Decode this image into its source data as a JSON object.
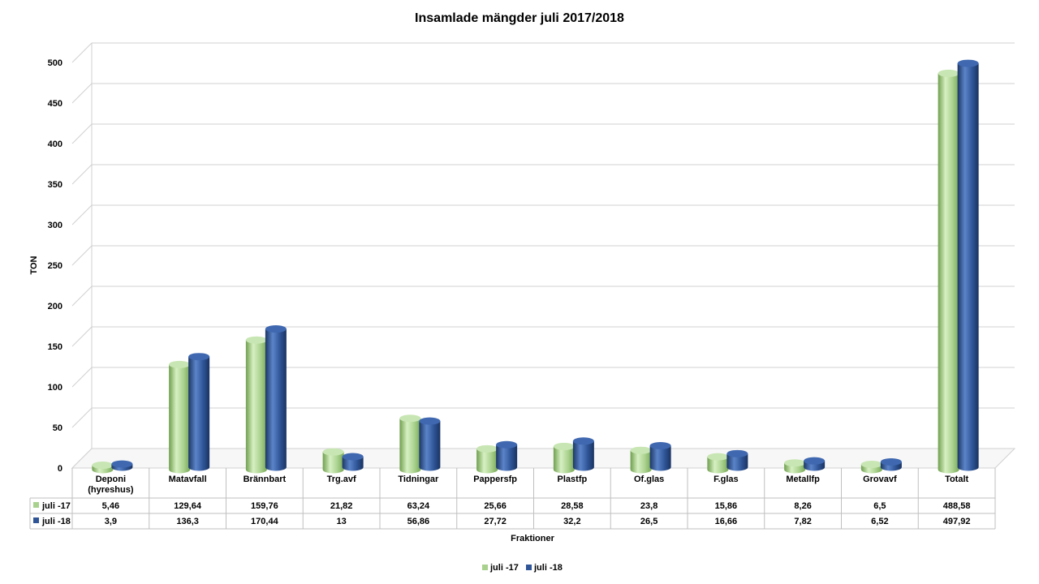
{
  "chart_data": {
    "type": "bar",
    "title": "Insamlade mängder juli 2017/2018",
    "xlabel": "Fraktioner",
    "ylabel": "TON",
    "ylim": [
      0,
      500
    ],
    "yticks": [
      0,
      50,
      100,
      150,
      200,
      250,
      300,
      350,
      400,
      450,
      500
    ],
    "grid": true,
    "legend_position": "bottom",
    "categories": [
      "Deponi\n(hyreshus)",
      "Matavfall",
      "Brännbart",
      "Trg.avf",
      "Tidningar",
      "Pappersfp",
      "Plastfp",
      "Of.glas",
      "F.glas",
      "Metallfp",
      "Grovavf",
      "Totalt"
    ],
    "series": [
      {
        "name": "juli -17",
        "color": "#a9d18e",
        "values": [
          5.46,
          129.64,
          159.76,
          21.82,
          63.24,
          25.66,
          28.58,
          23.8,
          15.86,
          8.26,
          6.5,
          488.58
        ],
        "labels": [
          "5,46",
          "129,64",
          "159,76",
          "21,82",
          "63,24",
          "25,66",
          "28,58",
          "23,8",
          "15,86",
          "8,26",
          "6,5",
          "488,58"
        ]
      },
      {
        "name": "juli -18",
        "color": "#2f5597",
        "values": [
          3.9,
          136.3,
          170.44,
          13,
          56.86,
          27.72,
          32.2,
          26.5,
          16.66,
          7.82,
          6.52,
          497.92
        ],
        "labels": [
          "3,9",
          "136,3",
          "170,44",
          "13",
          "56,86",
          "27,72",
          "32,2",
          "26,5",
          "16,66",
          "7,82",
          "6,52",
          "497,92"
        ]
      }
    ]
  }
}
